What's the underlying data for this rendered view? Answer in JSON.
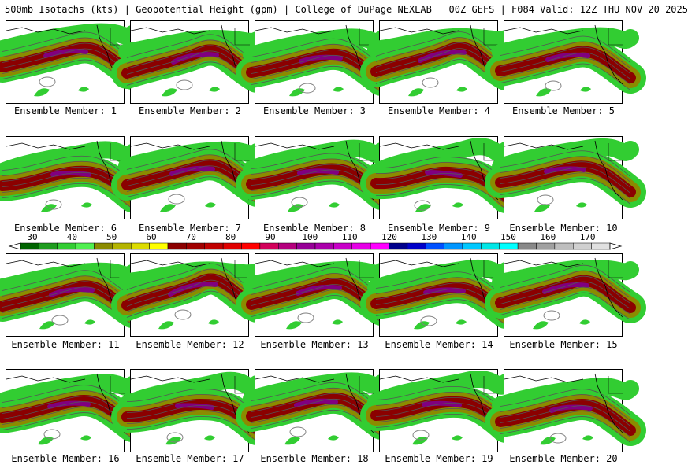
{
  "header": {
    "title": "500mb Isotachs (kts) | Geopotential Height (gpm) | College of DuPage NEXLAB",
    "run_info": "00Z GEFS | F084 Valid: 12Z THU NOV 20 2025"
  },
  "members": [
    {
      "label": "Ensemble Member: 1"
    },
    {
      "label": "Ensemble Member: 2"
    },
    {
      "label": "Ensemble Member: 3"
    },
    {
      "label": "Ensemble Member: 4"
    },
    {
      "label": "Ensemble Member: 5"
    },
    {
      "label": "Ensemble Member: 6"
    },
    {
      "label": "Ensemble Member: 7"
    },
    {
      "label": "Ensemble Member: 8"
    },
    {
      "label": "Ensemble Member: 9"
    },
    {
      "label": "Ensemble Member: 10"
    },
    {
      "label": "Ensemble Member: 11"
    },
    {
      "label": "Ensemble Member: 12"
    },
    {
      "label": "Ensemble Member: 13"
    },
    {
      "label": "Ensemble Member: 14"
    },
    {
      "label": "Ensemble Member: 15"
    },
    {
      "label": "Ensemble Member: 16"
    },
    {
      "label": "Ensemble Member: 17"
    },
    {
      "label": "Ensemble Member: 18"
    },
    {
      "label": "Ensemble Member: 19"
    },
    {
      "label": "Ensemble Member: 20"
    }
  ],
  "colorbar": {
    "labels": [
      "30",
      "40",
      "50",
      "60",
      "70",
      "80",
      "90",
      "100",
      "110",
      "120",
      "130",
      "140",
      "150",
      "160",
      "170"
    ],
    "colors": [
      "#006400",
      "#1e9c1e",
      "#32cd32",
      "#50f050",
      "#8b8b00",
      "#b4b400",
      "#dcdc00",
      "#ffff00",
      "#8b0000",
      "#a00000",
      "#c00000",
      "#e00000",
      "#ff0000",
      "#d2005a",
      "#b4007d",
      "#960096",
      "#aa00aa",
      "#c800c8",
      "#e600e6",
      "#ff00ff",
      "#00008b",
      "#0000c8",
      "#0050ff",
      "#0096ff",
      "#00c8ff",
      "#00e6e6",
      "#00ffff",
      "#888888",
      "#a0a0a0",
      "#bebebe",
      "#d0d0d0",
      "#e0e0e0"
    ]
  },
  "map_colors": {
    "speed_low": "#32cd32",
    "speed_mid": "#8b8b00",
    "speed_high": "#8b0000",
    "speed_core": "#800080",
    "contour": "#000000",
    "height_line": "#555555"
  }
}
